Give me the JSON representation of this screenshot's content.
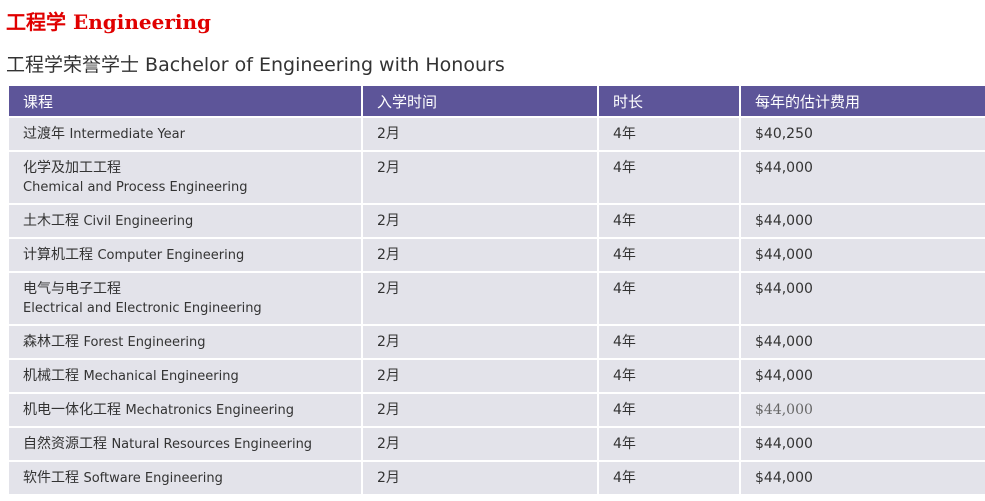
{
  "title": "工程学 Engineering",
  "subtitle": "工程学荣誉学士 Bachelor of Engineering with Honours",
  "colors": {
    "title": "#e00000",
    "header_bg": "#5d5599",
    "cell_bg": "#e3e3ea"
  },
  "table": {
    "headers": [
      "课程",
      "入学时间",
      "时长",
      "每年的估计费用"
    ],
    "rows": [
      {
        "zh": "过渡年",
        "en": "Intermediate Year",
        "intake": "2月",
        "duration": "4年",
        "fee": "$40,250"
      },
      {
        "zh": "化学及加工工程",
        "en": "Chemical and Process Engineering",
        "intake": "2月",
        "duration": "4年",
        "fee": "$44,000",
        "wrap": true
      },
      {
        "zh": "土木工程",
        "en": "Civil Engineering",
        "intake": "2月",
        "duration": "4年",
        "fee": "$44,000"
      },
      {
        "zh": "计算机工程",
        "en": "Computer Engineering",
        "intake": "2月",
        "duration": "4年",
        "fee": "$44,000"
      },
      {
        "zh": "电气与电子工程",
        "en": "Electrical and Electronic Engineering",
        "intake": "2月",
        "duration": "4年",
        "fee": "$44,000",
        "wrap": true
      },
      {
        "zh": "森林工程",
        "en": "Forest Engineering",
        "intake": "2月",
        "duration": "4年",
        "fee": "$44,000"
      },
      {
        "zh": "机械工程",
        "en": "Mechanical Engineering",
        "intake": "2月",
        "duration": "4年",
        "fee": "$44,000"
      },
      {
        "zh": "机电一体化工程",
        "en": "Mechatronics Engineering",
        "intake": "2月",
        "duration": "4年",
        "fee": "$44,000",
        "light": true
      },
      {
        "zh": "自然资源工程",
        "en": "Natural Resources Engineering",
        "intake": "2月",
        "duration": "4年",
        "fee": "$44,000"
      },
      {
        "zh": "软件工程",
        "en": "Software Engineering",
        "intake": "2月",
        "duration": "4年",
        "fee": "$44,000"
      }
    ]
  }
}
